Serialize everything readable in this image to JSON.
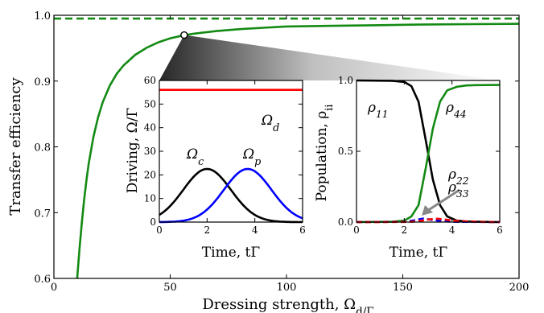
{
  "chart_data": [
    {
      "id": "main",
      "type": "line",
      "title": "",
      "xlabel": "Dressing strength, Ω_d/Γ",
      "ylabel": "Transfer efficiency",
      "xlim": [
        0,
        200
      ],
      "ylim": [
        0.6,
        1.0
      ],
      "xticks": [
        0,
        50,
        100,
        150,
        200
      ],
      "yticks": [
        0.6,
        0.7,
        0.8,
        0.9,
        1.0
      ],
      "grid": false,
      "series": [
        {
          "style": "solid",
          "color": "#138a13",
          "x": [
            10,
            11,
            12,
            13,
            14,
            15,
            17,
            19,
            21,
            24,
            27,
            30,
            35,
            40,
            45,
            50,
            55,
            60,
            70,
            80,
            90,
            100,
            120,
            140,
            160,
            180,
            200
          ],
          "y": [
            0.6,
            0.645,
            0.685,
            0.72,
            0.75,
            0.775,
            0.815,
            0.845,
            0.868,
            0.893,
            0.911,
            0.924,
            0.94,
            0.951,
            0.959,
            0.965,
            0.969,
            0.972,
            0.976,
            0.979,
            0.981,
            0.983,
            0.984,
            0.985,
            0.986,
            0.9865,
            0.987
          ]
        },
        {
          "style": "dashed",
          "color": "#138a13",
          "x": [
            0,
            200
          ],
          "y": [
            0.995,
            0.995
          ]
        }
      ],
      "highlight_point": {
        "x": 56,
        "y": 0.97
      }
    },
    {
      "id": "inset-driving",
      "type": "line",
      "xlabel": "Time, tΓ",
      "ylabel": "Driving, Ω/Γ",
      "xlim": [
        0,
        6
      ],
      "ylim": [
        0,
        60
      ],
      "xticks": [
        0,
        2,
        4,
        6
      ],
      "yticks": [
        0,
        10,
        20,
        30,
        40,
        50,
        60
      ],
      "series": [
        {
          "label": "Ω_d",
          "color": "#ff0000",
          "kind": "constant",
          "value": 56
        },
        {
          "label": "Ω_c",
          "color": "#000000",
          "kind": "gaussian",
          "amplitude": 22.5,
          "center": 2.0,
          "width": 1.0
        },
        {
          "label": "Ω_p",
          "color": "#0000ff",
          "kind": "gaussian",
          "amplitude": 22.5,
          "center": 3.7,
          "width": 1.0
        }
      ]
    },
    {
      "id": "inset-population",
      "type": "line",
      "xlabel": "Time, tΓ",
      "ylabel": "Population, ρ_ii",
      "xlim": [
        0,
        6
      ],
      "ylim": [
        0,
        1.0
      ],
      "xticks": [
        0,
        2,
        4,
        6
      ],
      "yticks": [
        0.0,
        0.5,
        1.0
      ],
      "series": [
        {
          "label": "ρ11",
          "color": "#000000",
          "style": "solid",
          "x": [
            0,
            1.5,
            2.0,
            2.3,
            2.6,
            2.9,
            3.2,
            3.5,
            3.8,
            4.2,
            4.6,
            5.0,
            6.0
          ],
          "y": [
            1.0,
            0.998,
            0.99,
            0.96,
            0.85,
            0.58,
            0.3,
            0.12,
            0.04,
            0.01,
            0.004,
            0.002,
            0.0
          ]
        },
        {
          "label": "ρ44",
          "color": "#138a13",
          "style": "solid",
          "x": [
            0,
            1.5,
            2.0,
            2.3,
            2.6,
            2.9,
            3.2,
            3.5,
            3.8,
            4.2,
            4.6,
            5.0,
            6.0
          ],
          "y": [
            0.0,
            0.002,
            0.01,
            0.04,
            0.12,
            0.38,
            0.66,
            0.85,
            0.93,
            0.955,
            0.965,
            0.967,
            0.968
          ]
        },
        {
          "label": "ρ22",
          "color": "#0000ff",
          "style": "dashed",
          "x": [
            0,
            2.0,
            2.4,
            2.8,
            3.2,
            3.6,
            4.0,
            6.0
          ],
          "y": [
            0,
            0.002,
            0.012,
            0.025,
            0.015,
            0.006,
            0.002,
            0.0
          ]
        },
        {
          "label": "ρ33",
          "color": "#ff0000",
          "style": "dashed",
          "x": [
            0,
            2.2,
            2.6,
            3.0,
            3.4,
            3.8,
            4.2,
            5.0,
            6.0
          ],
          "y": [
            0,
            0.001,
            0.006,
            0.018,
            0.024,
            0.016,
            0.008,
            0.002,
            0.0
          ]
        }
      ]
    }
  ]
}
